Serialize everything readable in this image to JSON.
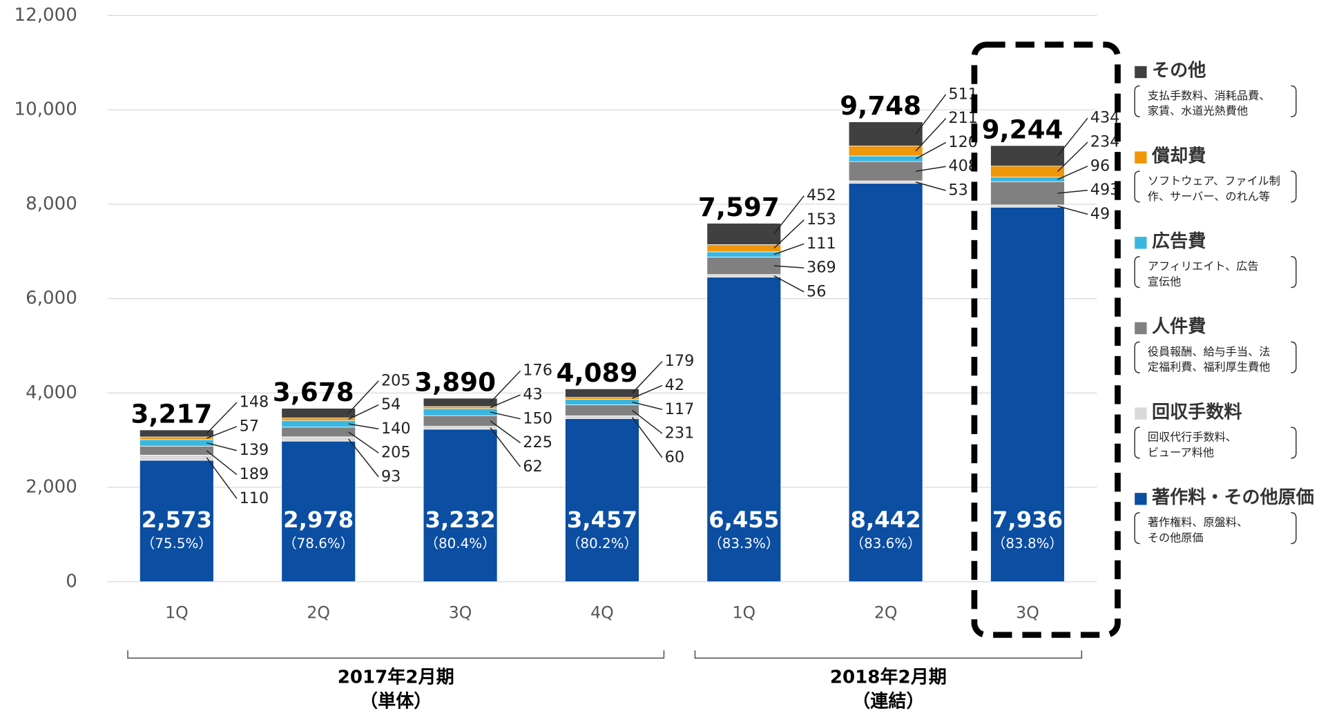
{
  "chart_data": {
    "type": "stacked_bar",
    "categories": [
      "1Q",
      "2Q",
      "3Q",
      "4Q",
      "1Q",
      "2Q",
      "3Q"
    ],
    "groups": [
      {
        "label": "2017年2月期",
        "sublabel": "（単体）",
        "from": 0,
        "to": 3
      },
      {
        "label": "2018年2月期",
        "sublabel": "（連結）",
        "from": 4,
        "to": 6
      }
    ],
    "ylim": [
      0,
      12000
    ],
    "yticks": [
      0,
      {
        "value": 2000,
        "label": "2,000"
      },
      {
        "value": 4000,
        "label": "4,000"
      },
      {
        "value": 6000,
        "label": "6,000"
      },
      {
        "value": 8000,
        "label": "8,000"
      },
      {
        "value": 10000,
        "label": "10,000"
      },
      {
        "value": 12000,
        "label": "12,000"
      }
    ],
    "grid": true,
    "highlight_index": 6,
    "series": [
      {
        "name": "著作料・その他原価",
        "color": "#0b4ea2",
        "description": [
          "著作権料、原盤料、",
          "その他原価"
        ],
        "values": [
          2573,
          2978,
          3232,
          3457,
          6455,
          8442,
          7936
        ],
        "value_labels": [
          "2,573",
          "2,978",
          "3,232",
          "3,457",
          "6,455",
          "8,442",
          "7,936"
        ],
        "share_labels": [
          "（75.5%）",
          "（78.6%）",
          "（80.4%）",
          "（80.2%）",
          "（83.3%）",
          "（83.6%）",
          "（83.8%）"
        ]
      },
      {
        "name": "回収手数料",
        "color": "#d9d9d9",
        "description": [
          "回収代行手数料、",
          "ビューア料他"
        ],
        "values": [
          110,
          93,
          62,
          60,
          56,
          53,
          49
        ]
      },
      {
        "name": "人件費",
        "color": "#808080",
        "description": [
          "役員報酬、給与手当、法",
          "定福利費、福利厚生費他"
        ],
        "values": [
          189,
          205,
          225,
          231,
          369,
          408,
          493
        ]
      },
      {
        "name": "広告費",
        "color": "#3ab7e0",
        "description": [
          "アフィリエイト、広告",
          "宣伝他"
        ],
        "values": [
          139,
          140,
          150,
          117,
          111,
          120,
          96
        ]
      },
      {
        "name": "償却費",
        "color": "#f0960a",
        "description": [
          "ソフトウェア、ファイル制",
          "作、サーバー、のれん等"
        ],
        "values": [
          57,
          54,
          43,
          42,
          153,
          211,
          234
        ]
      },
      {
        "name": "その他",
        "color": "#404040",
        "description": [
          "支払手数料、消耗品費、",
          "家賃、水道光熱費他"
        ],
        "values": [
          148,
          205,
          176,
          179,
          452,
          511,
          434
        ]
      }
    ],
    "totals": [
      3217,
      3678,
      3890,
      4089,
      7597,
      9748,
      9244
    ],
    "total_labels": [
      "3,217",
      "3,678",
      "3,890",
      "4,089",
      "7,597",
      "9,748",
      "9,244"
    ]
  }
}
